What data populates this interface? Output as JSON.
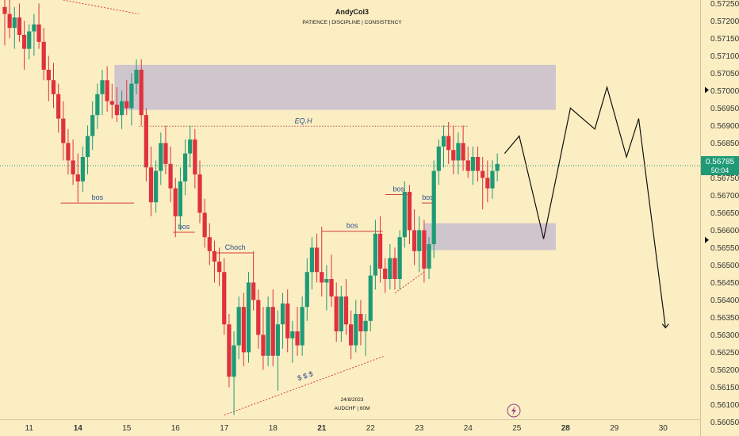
{
  "chart_data": {
    "type": "candlestick",
    "title": "AndyCol3",
    "subtitle": "PATIENCE | DISCIPLINE | CONSISTENCY",
    "footer_date": "24/8/2023",
    "footer_symbol": "AUDCHF | 60M",
    "ylim": [
      0.5603,
      0.5726
    ],
    "y_ticks": [
      "0.57250",
      "0.57200",
      "0.57150",
      "0.57100",
      "0.57050",
      "0.57000",
      "0.56950",
      "0.56900",
      "0.56850",
      "0.56800",
      "0.56750",
      "0.56700",
      "0.56650",
      "0.56600",
      "0.56550",
      "0.56500",
      "0.56450",
      "0.56400",
      "0.56350",
      "0.56300",
      "0.56250",
      "0.56200",
      "0.56150",
      "0.56100",
      "0.56050"
    ],
    "x_ticks": [
      {
        "label": "11",
        "x": 0.5,
        "bold": false
      },
      {
        "label": "14",
        "x": 1.5,
        "bold": true
      },
      {
        "label": "15",
        "x": 2.5,
        "bold": false
      },
      {
        "label": "16",
        "x": 3.5,
        "bold": false
      },
      {
        "label": "17",
        "x": 4.5,
        "bold": false
      },
      {
        "label": "18",
        "x": 5.5,
        "bold": false
      },
      {
        "label": "21",
        "x": 6.5,
        "bold": true
      },
      {
        "label": "22",
        "x": 7.5,
        "bold": false
      },
      {
        "label": "23",
        "x": 8.5,
        "bold": false
      },
      {
        "label": "24",
        "x": 9.5,
        "bold": false
      },
      {
        "label": "25",
        "x": 10.5,
        "bold": false
      },
      {
        "label": "28",
        "x": 11.5,
        "bold": true
      },
      {
        "label": "29",
        "x": 12.5,
        "bold": false
      },
      {
        "label": "30",
        "x": 13.5,
        "bold": false
      }
    ],
    "current_price": "0.56785",
    "current_price_value": 0.56785,
    "countdown": "50:04",
    "arrow_levels": [
      0.57002,
      0.56572
    ],
    "zones": [
      {
        "x0": 2.25,
        "x1": 11.3,
        "y0": 0.56945,
        "y1": 0.57074
      },
      {
        "x0": 8.6,
        "x1": 11.3,
        "y0": 0.56543,
        "y1": 0.5662
      }
    ],
    "levels": [
      {
        "label": "bos",
        "x0": 1.15,
        "x1": 2.65,
        "y": 0.56678
      },
      {
        "label": "bos",
        "x0": 3.45,
        "x1": 3.9,
        "y": 0.56594
      },
      {
        "label": "Choch",
        "x0": 4.35,
        "x1": 5.1,
        "y": 0.56535
      },
      {
        "label": "bos",
        "x0": 6.5,
        "x1": 7.75,
        "y": 0.56597
      },
      {
        "label": "bos",
        "x0": 7.8,
        "x1": 8.35,
        "y": 0.56702
      },
      {
        "label": "bos",
        "x0": 8.55,
        "x1": 8.8,
        "y": 0.56678
      },
      {
        "label": "EQ.H",
        "x0": 2.75,
        "x1": 9.5,
        "y": 0.56898
      }
    ],
    "liquidity_label": "$ $ $",
    "projection": [
      {
        "x": 10.25,
        "y": 0.5682
      },
      {
        "x": 10.55,
        "y": 0.5687
      },
      {
        "x": 11.05,
        "y": 0.56575
      },
      {
        "x": 11.6,
        "y": 0.5695
      },
      {
        "x": 12.1,
        "y": 0.5689
      },
      {
        "x": 12.35,
        "y": 0.5701
      },
      {
        "x": 12.75,
        "y": 0.5681
      },
      {
        "x": 13.0,
        "y": 0.5692
      },
      {
        "x": 13.55,
        "y": 0.5632
      }
    ],
    "series": [
      {
        "x": 0.0,
        "o": 0.5724,
        "h": 0.5727,
        "l": 0.5713,
        "c": 0.5722
      },
      {
        "x": 0.1,
        "o": 0.5722,
        "h": 0.5726,
        "l": 0.5715,
        "c": 0.5718
      },
      {
        "x": 0.2,
        "o": 0.5718,
        "h": 0.5724,
        "l": 0.5712,
        "c": 0.5721
      },
      {
        "x": 0.3,
        "o": 0.5721,
        "h": 0.5725,
        "l": 0.5714,
        "c": 0.5716
      },
      {
        "x": 0.4,
        "o": 0.5716,
        "h": 0.572,
        "l": 0.5706,
        "c": 0.5712
      },
      {
        "x": 0.5,
        "o": 0.5712,
        "h": 0.5719,
        "l": 0.5709,
        "c": 0.5717
      },
      {
        "x": 0.6,
        "o": 0.5717,
        "h": 0.5722,
        "l": 0.571,
        "c": 0.5719
      },
      {
        "x": 0.7,
        "o": 0.5719,
        "h": 0.5725,
        "l": 0.5712,
        "c": 0.5714
      },
      {
        "x": 0.8,
        "o": 0.5714,
        "h": 0.5718,
        "l": 0.5703,
        "c": 0.5706
      },
      {
        "x": 0.9,
        "o": 0.5706,
        "h": 0.571,
        "l": 0.5697,
        "c": 0.5703
      },
      {
        "x": 1.0,
        "o": 0.5703,
        "h": 0.5708,
        "l": 0.5695,
        "c": 0.5699
      },
      {
        "x": 1.1,
        "o": 0.5699,
        "h": 0.5702,
        "l": 0.5688,
        "c": 0.5692
      },
      {
        "x": 1.2,
        "o": 0.5692,
        "h": 0.5697,
        "l": 0.568,
        "c": 0.5685
      },
      {
        "x": 1.3,
        "o": 0.5685,
        "h": 0.5689,
        "l": 0.5676,
        "c": 0.568
      },
      {
        "x": 1.4,
        "o": 0.568,
        "h": 0.5686,
        "l": 0.5673,
        "c": 0.5676
      },
      {
        "x": 1.5,
        "o": 0.5676,
        "h": 0.5682,
        "l": 0.5668,
        "c": 0.5674
      },
      {
        "x": 1.6,
        "o": 0.5674,
        "h": 0.5684,
        "l": 0.5671,
        "c": 0.5681
      },
      {
        "x": 1.7,
        "o": 0.5681,
        "h": 0.569,
        "l": 0.5676,
        "c": 0.5687
      },
      {
        "x": 1.8,
        "o": 0.5687,
        "h": 0.5697,
        "l": 0.5683,
        "c": 0.5693
      },
      {
        "x": 1.9,
        "o": 0.5693,
        "h": 0.5702,
        "l": 0.5689,
        "c": 0.5699
      },
      {
        "x": 2.0,
        "o": 0.5699,
        "h": 0.5706,
        "l": 0.5693,
        "c": 0.5703
      },
      {
        "x": 2.1,
        "o": 0.5703,
        "h": 0.5707,
        "l": 0.5694,
        "c": 0.5697
      },
      {
        "x": 2.2,
        "o": 0.5697,
        "h": 0.5702,
        "l": 0.5692,
        "c": 0.5696
      },
      {
        "x": 2.3,
        "o": 0.5696,
        "h": 0.5701,
        "l": 0.5691,
        "c": 0.5693
      },
      {
        "x": 2.4,
        "o": 0.5693,
        "h": 0.57,
        "l": 0.5689,
        "c": 0.5697
      },
      {
        "x": 2.5,
        "o": 0.5697,
        "h": 0.5703,
        "l": 0.5693,
        "c": 0.5695
      },
      {
        "x": 2.6,
        "o": 0.5695,
        "h": 0.5705,
        "l": 0.569,
        "c": 0.5702
      },
      {
        "x": 2.7,
        "o": 0.5702,
        "h": 0.5709,
        "l": 0.5699,
        "c": 0.5706
      },
      {
        "x": 2.8,
        "o": 0.5706,
        "h": 0.5709,
        "l": 0.569,
        "c": 0.5693
      },
      {
        "x": 2.9,
        "o": 0.5693,
        "h": 0.5695,
        "l": 0.5674,
        "c": 0.5678
      },
      {
        "x": 3.0,
        "o": 0.5678,
        "h": 0.5684,
        "l": 0.5664,
        "c": 0.5668
      },
      {
        "x": 3.1,
        "o": 0.5668,
        "h": 0.568,
        "l": 0.5665,
        "c": 0.5677
      },
      {
        "x": 3.2,
        "o": 0.5677,
        "h": 0.5688,
        "l": 0.5673,
        "c": 0.5685
      },
      {
        "x": 3.3,
        "o": 0.5685,
        "h": 0.569,
        "l": 0.5676,
        "c": 0.5679
      },
      {
        "x": 3.4,
        "o": 0.5679,
        "h": 0.5684,
        "l": 0.5668,
        "c": 0.5672
      },
      {
        "x": 3.5,
        "o": 0.5672,
        "h": 0.5675,
        "l": 0.5658,
        "c": 0.5664
      },
      {
        "x": 3.6,
        "o": 0.5664,
        "h": 0.5678,
        "l": 0.566,
        "c": 0.5674
      },
      {
        "x": 3.7,
        "o": 0.5674,
        "h": 0.5686,
        "l": 0.567,
        "c": 0.5682
      },
      {
        "x": 3.8,
        "o": 0.5682,
        "h": 0.569,
        "l": 0.5678,
        "c": 0.5686
      },
      {
        "x": 3.9,
        "o": 0.5686,
        "h": 0.5689,
        "l": 0.5672,
        "c": 0.5676
      },
      {
        "x": 4.0,
        "o": 0.5676,
        "h": 0.568,
        "l": 0.5662,
        "c": 0.5665
      },
      {
        "x": 4.1,
        "o": 0.5665,
        "h": 0.5669,
        "l": 0.5655,
        "c": 0.5658
      },
      {
        "x": 4.2,
        "o": 0.5658,
        "h": 0.5662,
        "l": 0.565,
        "c": 0.5654
      },
      {
        "x": 4.3,
        "o": 0.5654,
        "h": 0.5657,
        "l": 0.5645,
        "c": 0.5651
      },
      {
        "x": 4.4,
        "o": 0.5651,
        "h": 0.5655,
        "l": 0.5644,
        "c": 0.5648
      },
      {
        "x": 4.5,
        "o": 0.5648,
        "h": 0.5652,
        "l": 0.563,
        "c": 0.5633
      },
      {
        "x": 4.6,
        "o": 0.5633,
        "h": 0.5636,
        "l": 0.5615,
        "c": 0.5618
      },
      {
        "x": 4.7,
        "o": 0.5618,
        "h": 0.5631,
        "l": 0.5607,
        "c": 0.5627
      },
      {
        "x": 4.8,
        "o": 0.5627,
        "h": 0.5641,
        "l": 0.5623,
        "c": 0.5638
      },
      {
        "x": 4.9,
        "o": 0.5638,
        "h": 0.5642,
        "l": 0.5621,
        "c": 0.5625
      },
      {
        "x": 5.0,
        "o": 0.5625,
        "h": 0.5648,
        "l": 0.5622,
        "c": 0.5645
      },
      {
        "x": 5.1,
        "o": 0.5645,
        "h": 0.5654,
        "l": 0.5637,
        "c": 0.564
      },
      {
        "x": 5.2,
        "o": 0.564,
        "h": 0.5643,
        "l": 0.5626,
        "c": 0.563
      },
      {
        "x": 5.3,
        "o": 0.563,
        "h": 0.5638,
        "l": 0.562,
        "c": 0.5624
      },
      {
        "x": 5.4,
        "o": 0.5624,
        "h": 0.5641,
        "l": 0.5621,
        "c": 0.5638
      },
      {
        "x": 5.5,
        "o": 0.5638,
        "h": 0.5643,
        "l": 0.5621,
        "c": 0.5624
      },
      {
        "x": 5.6,
        "o": 0.5624,
        "h": 0.5637,
        "l": 0.5614,
        "c": 0.5633
      },
      {
        "x": 5.7,
        "o": 0.5633,
        "h": 0.5642,
        "l": 0.5626,
        "c": 0.5639
      },
      {
        "x": 5.8,
        "o": 0.5639,
        "h": 0.5643,
        "l": 0.5625,
        "c": 0.5629
      },
      {
        "x": 5.9,
        "o": 0.5629,
        "h": 0.5634,
        "l": 0.5622,
        "c": 0.5631
      },
      {
        "x": 6.0,
        "o": 0.5631,
        "h": 0.5638,
        "l": 0.5624,
        "c": 0.5627
      },
      {
        "x": 6.1,
        "o": 0.5627,
        "h": 0.5641,
        "l": 0.5624,
        "c": 0.5638
      },
      {
        "x": 6.2,
        "o": 0.5638,
        "h": 0.5652,
        "l": 0.5634,
        "c": 0.5648
      },
      {
        "x": 6.3,
        "o": 0.5648,
        "h": 0.5658,
        "l": 0.5643,
        "c": 0.5655
      },
      {
        "x": 6.4,
        "o": 0.5655,
        "h": 0.5659,
        "l": 0.5645,
        "c": 0.5648
      },
      {
        "x": 6.5,
        "o": 0.5648,
        "h": 0.5661,
        "l": 0.5641,
        "c": 0.5645
      },
      {
        "x": 6.6,
        "o": 0.5645,
        "h": 0.565,
        "l": 0.5637,
        "c": 0.5646
      },
      {
        "x": 6.7,
        "o": 0.5646,
        "h": 0.5653,
        "l": 0.5638,
        "c": 0.5641
      },
      {
        "x": 6.8,
        "o": 0.5641,
        "h": 0.5645,
        "l": 0.5628,
        "c": 0.5631
      },
      {
        "x": 6.9,
        "o": 0.5631,
        "h": 0.5644,
        "l": 0.5628,
        "c": 0.5641
      },
      {
        "x": 7.0,
        "o": 0.5641,
        "h": 0.5646,
        "l": 0.563,
        "c": 0.5633
      },
      {
        "x": 7.1,
        "o": 0.5633,
        "h": 0.5637,
        "l": 0.5623,
        "c": 0.5627
      },
      {
        "x": 7.2,
        "o": 0.5627,
        "h": 0.564,
        "l": 0.5625,
        "c": 0.5636
      },
      {
        "x": 7.3,
        "o": 0.5636,
        "h": 0.564,
        "l": 0.5627,
        "c": 0.5631
      },
      {
        "x": 7.4,
        "o": 0.5631,
        "h": 0.5636,
        "l": 0.5624,
        "c": 0.5634
      },
      {
        "x": 7.5,
        "o": 0.5634,
        "h": 0.565,
        "l": 0.5631,
        "c": 0.5647
      },
      {
        "x": 7.6,
        "o": 0.5647,
        "h": 0.5663,
        "l": 0.5643,
        "c": 0.5659
      },
      {
        "x": 7.7,
        "o": 0.5659,
        "h": 0.5664,
        "l": 0.5645,
        "c": 0.5649
      },
      {
        "x": 7.8,
        "o": 0.5649,
        "h": 0.5652,
        "l": 0.5642,
        "c": 0.5646
      },
      {
        "x": 7.9,
        "o": 0.5646,
        "h": 0.5656,
        "l": 0.5643,
        "c": 0.5652
      },
      {
        "x": 8.0,
        "o": 0.5652,
        "h": 0.5655,
        "l": 0.5643,
        "c": 0.5646
      },
      {
        "x": 8.1,
        "o": 0.5646,
        "h": 0.566,
        "l": 0.5643,
        "c": 0.5658
      },
      {
        "x": 8.2,
        "o": 0.5658,
        "h": 0.5674,
        "l": 0.5655,
        "c": 0.5671
      },
      {
        "x": 8.3,
        "o": 0.5671,
        "h": 0.5673,
        "l": 0.5656,
        "c": 0.566
      },
      {
        "x": 8.4,
        "o": 0.566,
        "h": 0.5666,
        "l": 0.565,
        "c": 0.5654
      },
      {
        "x": 8.5,
        "o": 0.5654,
        "h": 0.5664,
        "l": 0.5648,
        "c": 0.566
      },
      {
        "x": 8.6,
        "o": 0.566,
        "h": 0.5663,
        "l": 0.5645,
        "c": 0.5649
      },
      {
        "x": 8.7,
        "o": 0.5649,
        "h": 0.5658,
        "l": 0.5646,
        "c": 0.5656
      },
      {
        "x": 8.8,
        "o": 0.5656,
        "h": 0.568,
        "l": 0.5652,
        "c": 0.5677
      },
      {
        "x": 8.9,
        "o": 0.5677,
        "h": 0.5686,
        "l": 0.5673,
        "c": 0.5684
      },
      {
        "x": 9.0,
        "o": 0.5684,
        "h": 0.569,
        "l": 0.5678,
        "c": 0.5687
      },
      {
        "x": 9.1,
        "o": 0.5687,
        "h": 0.5691,
        "l": 0.5679,
        "c": 0.5683
      },
      {
        "x": 9.2,
        "o": 0.5683,
        "h": 0.569,
        "l": 0.5676,
        "c": 0.568
      },
      {
        "x": 9.3,
        "o": 0.568,
        "h": 0.5688,
        "l": 0.5676,
        "c": 0.5685
      },
      {
        "x": 9.4,
        "o": 0.5685,
        "h": 0.569,
        "l": 0.5677,
        "c": 0.568
      },
      {
        "x": 9.5,
        "o": 0.568,
        "h": 0.5684,
        "l": 0.5675,
        "c": 0.5677
      },
      {
        "x": 9.6,
        "o": 0.5677,
        "h": 0.5684,
        "l": 0.5673,
        "c": 0.5681
      },
      {
        "x": 9.7,
        "o": 0.5681,
        "h": 0.5684,
        "l": 0.5674,
        "c": 0.5677
      },
      {
        "x": 9.8,
        "o": 0.5677,
        "h": 0.5681,
        "l": 0.5666,
        "c": 0.5675
      },
      {
        "x": 9.9,
        "o": 0.5675,
        "h": 0.568,
        "l": 0.5668,
        "c": 0.5672
      },
      {
        "x": 10.0,
        "o": 0.5672,
        "h": 0.568,
        "l": 0.5669,
        "c": 0.5677
      },
      {
        "x": 10.1,
        "o": 0.5677,
        "h": 0.5682,
        "l": 0.5674,
        "c": 0.5679
      }
    ]
  }
}
